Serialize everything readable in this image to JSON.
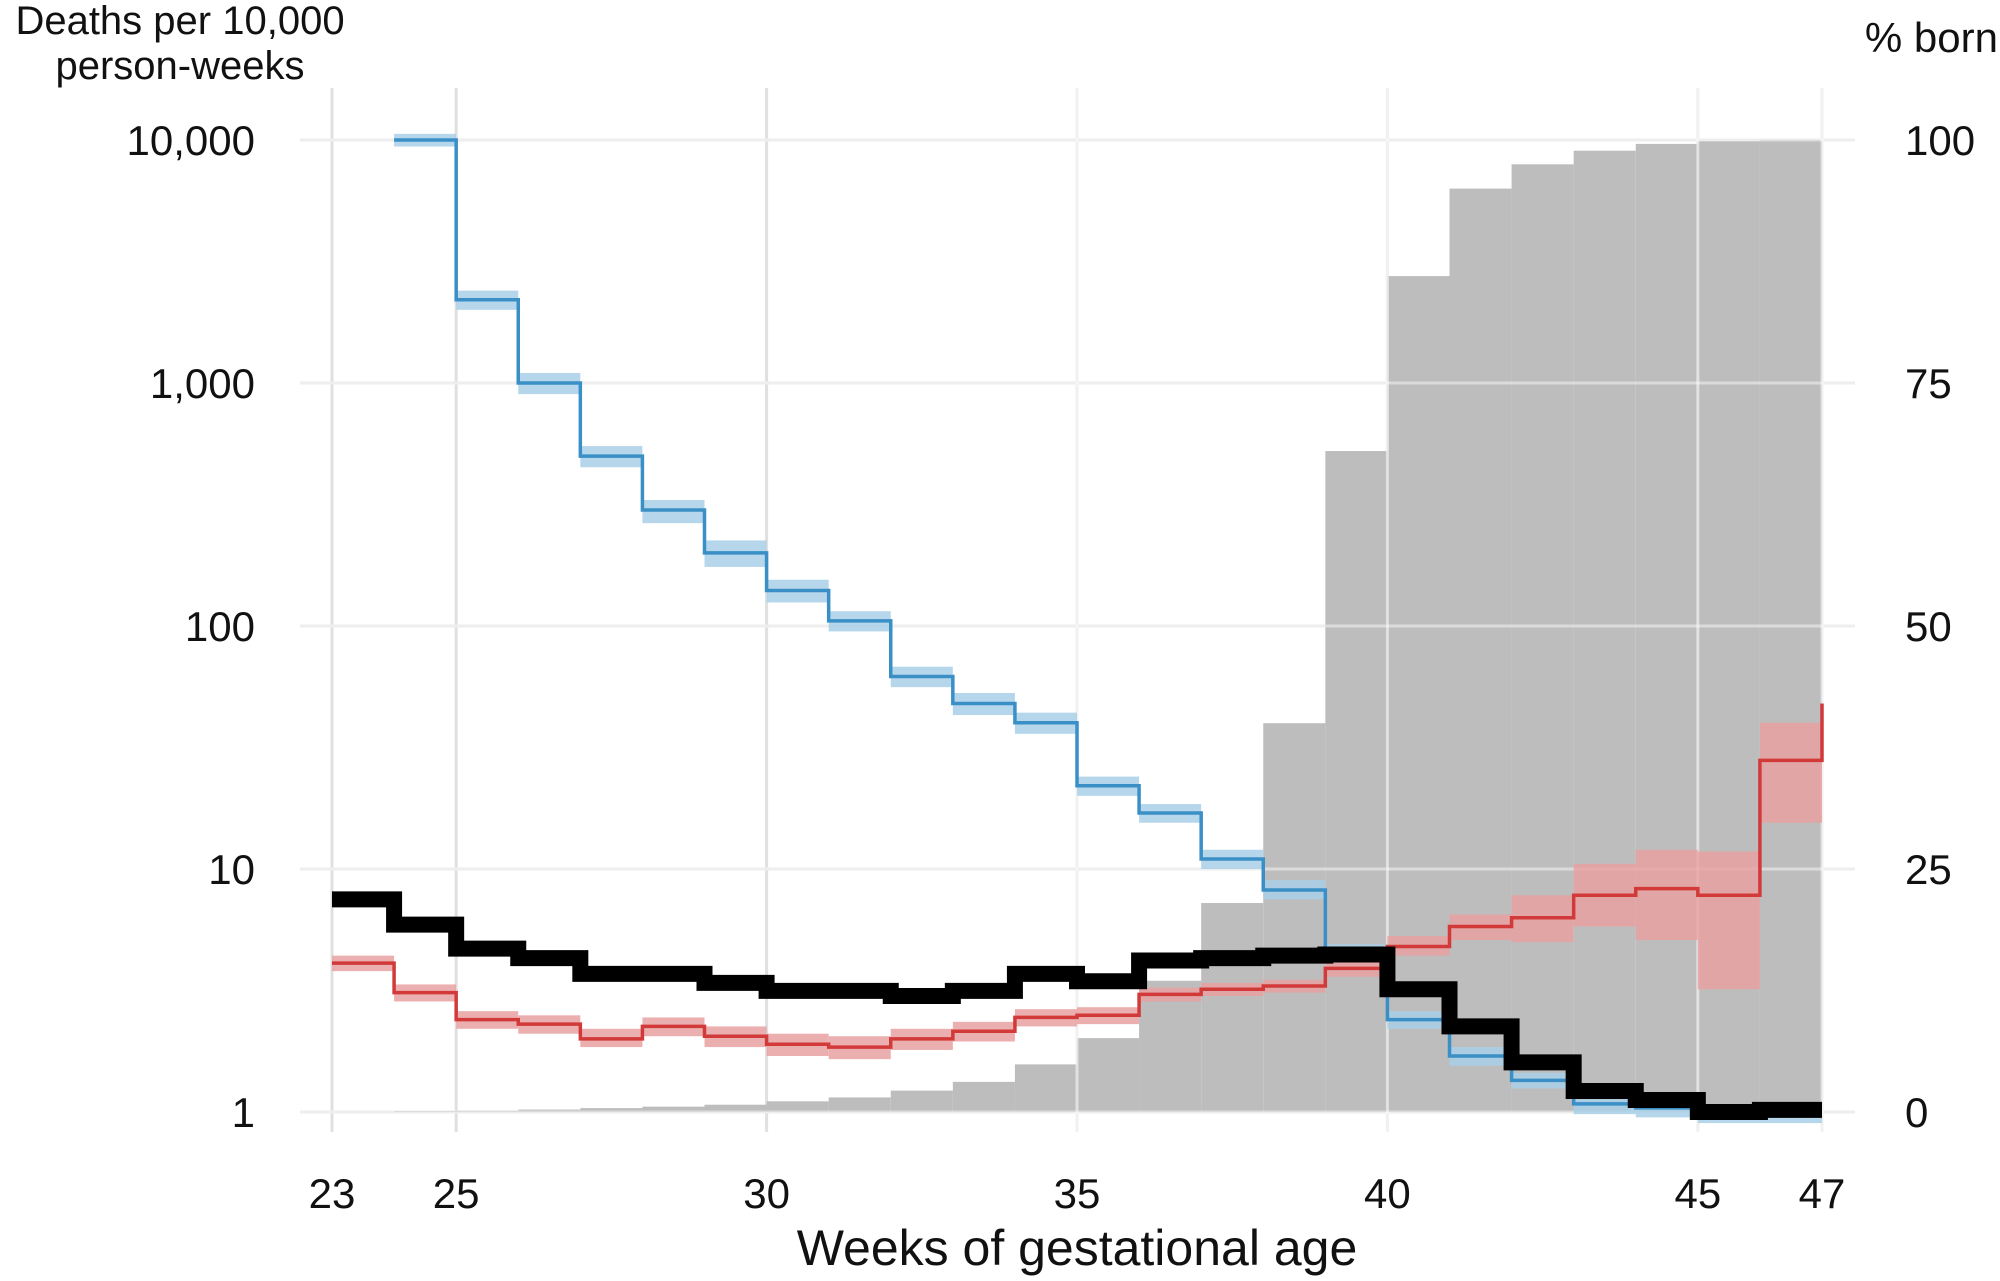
{
  "chart_data": {
    "type": "line",
    "title": "",
    "xlabel": "Weeks of gestational age",
    "ylabel_left": [
      "Deaths per 10,000",
      "person-weeks"
    ],
    "ylabel_right": "% born",
    "x_ticks": [
      23,
      25,
      30,
      35,
      40,
      45,
      47
    ],
    "y_left_ticks": [
      {
        "value": 1,
        "label": "1"
      },
      {
        "value": 10,
        "label": "10"
      },
      {
        "value": 100,
        "label": "100"
      },
      {
        "value": 1000,
        "label": "1,000"
      },
      {
        "value": 10000,
        "label": "10,000"
      }
    ],
    "y_right_ticks": [
      0,
      25,
      50,
      75,
      100
    ],
    "xlim": [
      23,
      47
    ],
    "ylim_left": [
      1,
      10000
    ],
    "yscale_left": "log",
    "ylim_right": [
      0,
      100
    ],
    "grid": true,
    "colors": {
      "blue": "#3a8fc6",
      "blue_band": "#a9d0e8",
      "red": "#d23a3a",
      "red_band": "#e9a1a1",
      "black": "#000000",
      "bars": "#bdbdbd",
      "grid": "#e0e0e0"
    },
    "bars": {
      "axis": "right",
      "x_start": [
        24,
        25,
        26,
        27,
        28,
        29,
        30,
        31,
        32,
        33,
        34,
        35,
        36,
        37,
        38,
        39,
        40,
        41,
        42,
        43,
        44,
        45,
        46
      ],
      "values": [
        0.1,
        0.15,
        0.25,
        0.4,
        0.55,
        0.75,
        1.1,
        1.5,
        2.2,
        3.1,
        4.9,
        7.6,
        13.5,
        21.5,
        40.0,
        68.0,
        86.0,
        95.0,
        97.5,
        98.9,
        99.6,
        99.9,
        100.0
      ]
    },
    "series": [
      {
        "color_key": "blue",
        "width": "thin",
        "x_start": [
          24,
          25,
          26,
          27,
          28,
          29,
          30,
          31,
          32,
          33,
          34,
          35,
          36,
          37,
          38,
          39,
          40,
          41,
          42,
          43,
          44,
          45,
          46
        ],
        "values": [
          10000,
          2200,
          1000,
          500,
          300,
          200,
          140,
          105,
          62,
          48,
          40,
          22,
          17,
          11,
          8.2,
          4.5,
          2.4,
          1.7,
          1.35,
          1.08,
          1.04,
          0.97,
          0.97
        ],
        "lower": [
          9400,
          2000,
          900,
          450,
          265,
          175,
          125,
          95,
          56,
          43,
          36,
          20,
          15.5,
          10,
          7.5,
          4.1,
          2.2,
          1.55,
          1.25,
          0.98,
          0.95,
          0.9,
          0.9
        ],
        "upper": [
          10600,
          2400,
          1100,
          550,
          330,
          225,
          155,
          115,
          68,
          53,
          44,
          24,
          18.5,
          12,
          9,
          4.9,
          2.6,
          1.85,
          1.45,
          1.18,
          1.12,
          1.04,
          1.04
        ]
      },
      {
        "color_key": "red",
        "width": "thin",
        "x_start": [
          23,
          24,
          25,
          26,
          27,
          28,
          29,
          30,
          31,
          32,
          33,
          34,
          35,
          36,
          37,
          38,
          39,
          40,
          41,
          42,
          43,
          44,
          45,
          46
        ],
        "values": [
          4.1,
          3.1,
          2.4,
          2.3,
          2.0,
          2.25,
          2.05,
          1.9,
          1.85,
          2.0,
          2.15,
          2.45,
          2.5,
          3.05,
          3.2,
          3.3,
          3.9,
          4.8,
          5.8,
          6.3,
          7.8,
          8.3,
          7.8,
          28
        ],
        "lower": [
          3.8,
          2.85,
          2.2,
          2.1,
          1.85,
          2.05,
          1.85,
          1.7,
          1.65,
          1.8,
          1.95,
          2.25,
          2.3,
          2.85,
          3.0,
          3.1,
          3.6,
          4.4,
          5.1,
          5.0,
          5.8,
          5.1,
          3.2,
          15.5
        ],
        "upper": [
          4.4,
          3.35,
          2.6,
          2.5,
          2.2,
          2.45,
          2.25,
          2.1,
          2.05,
          2.2,
          2.35,
          2.65,
          2.7,
          3.25,
          3.4,
          3.5,
          4.2,
          5.3,
          6.5,
          7.8,
          10.5,
          12.0,
          11.8,
          40
        ],
        "end_value": 48
      },
      {
        "color_key": "black",
        "width": "thick",
        "x_start": [
          23,
          24,
          25,
          26,
          27,
          28,
          29,
          30,
          31,
          32,
          33,
          34,
          35,
          36,
          37,
          38,
          39,
          40,
          41,
          42,
          43,
          44,
          45,
          46
        ],
        "values": [
          7.5,
          5.9,
          4.7,
          4.3,
          3.7,
          3.7,
          3.4,
          3.15,
          3.15,
          3.0,
          3.15,
          3.7,
          3.45,
          4.2,
          4.3,
          4.4,
          4.45,
          3.2,
          2.25,
          1.6,
          1.22,
          1.12,
          1.0,
          1.02
        ]
      }
    ]
  }
}
